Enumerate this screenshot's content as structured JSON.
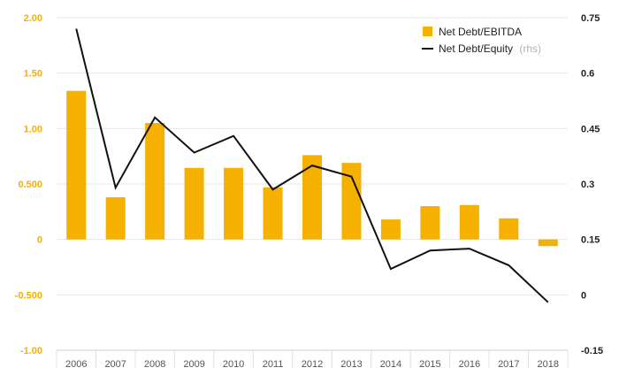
{
  "chart_data": {
    "type": "bar",
    "categories": [
      "2006",
      "2007",
      "2008",
      "2009",
      "2010",
      "2011",
      "2012",
      "2013",
      "2014",
      "2015",
      "2016",
      "2017",
      "2018"
    ],
    "series": [
      {
        "name": "Net Debt/EBITDA",
        "type": "bar",
        "axis": "left",
        "color": "#f5b000",
        "values": [
          1.34,
          0.38,
          1.05,
          0.645,
          0.645,
          0.47,
          0.76,
          0.69,
          0.18,
          0.3,
          0.31,
          0.19,
          -0.06
        ]
      },
      {
        "name": "Net Debt/Equity",
        "name_note": "(rhs)",
        "type": "line",
        "axis": "right",
        "color": "#111111",
        "values": [
          0.72,
          0.29,
          0.48,
          0.385,
          0.43,
          0.285,
          0.35,
          0.32,
          0.07,
          0.12,
          0.125,
          0.08,
          -0.02
        ]
      }
    ],
    "left_axis": {
      "ylim": [
        -1.0,
        2.0
      ],
      "ticks": [
        2.0,
        1.5,
        1.0,
        0.5,
        0,
        -0.5,
        -1.0
      ],
      "tick_labels": [
        "2.00",
        "1.50",
        "1.00",
        "0.500",
        "0",
        "-0.500",
        "-1.00"
      ],
      "color": "#f5b000"
    },
    "right_axis": {
      "ylim": [
        -0.15,
        0.75
      ],
      "ticks": [
        0.75,
        0.6,
        0.45,
        0.3,
        0.15,
        0,
        -0.15
      ],
      "tick_labels": [
        "0.75",
        "0.6",
        "0.45",
        "0.3",
        "0.15",
        "0",
        "-0.15"
      ],
      "color": "#222222"
    },
    "grid": true,
    "legend_position": "top-right"
  }
}
